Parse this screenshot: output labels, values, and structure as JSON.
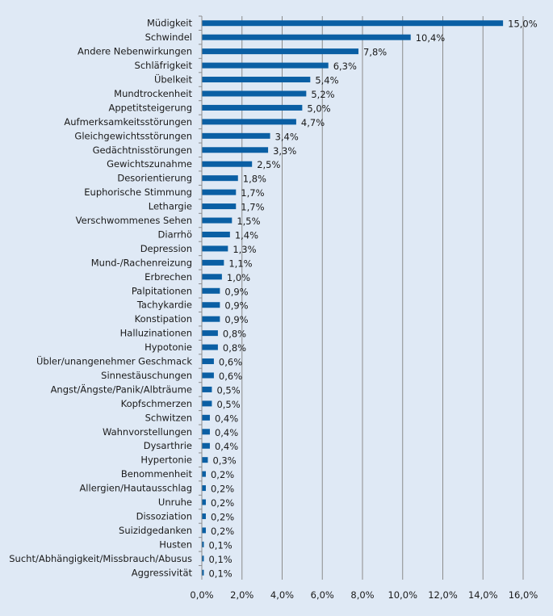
{
  "chart_data": {
    "type": "bar",
    "orientation": "horizontal",
    "title": "",
    "xlabel": "",
    "ylabel": "",
    "xlim": [
      0,
      16
    ],
    "grid": true,
    "bar_color": "#0a5fa4",
    "grid_color": "#8c8c8c",
    "background_color": "#dfe9f5",
    "x_ticks": [
      "0,0%",
      "2,0%",
      "4,0%",
      "6,0%",
      "8,0%",
      "10,0%",
      "12,0%",
      "14,0%",
      "16,0%"
    ],
    "categories": [
      "Müdigkeit",
      "Schwindel",
      "Andere Nebenwirkungen",
      "Schläfrigkeit",
      "Übelkeit",
      "Mundtrockenheit",
      "Appetitsteigerung",
      "Aufmerksamkeitsstörungen",
      "Gleichgewichtsstörungen",
      "Gedächtnisstörungen",
      "Gewichtszunahme",
      "Desorientierung",
      "Euphorische Stimmung",
      "Lethargie",
      "Verschwommenes Sehen",
      "Diarrhö",
      "Depression",
      "Mund-/Rachenreizung",
      "Erbrechen",
      "Palpitationen",
      "Tachykardie",
      "Konstipation",
      "Halluzinationen",
      "Hypotonie",
      "Übler/unangenehmer Geschmack",
      "Sinnestäuschungen",
      "Angst/Ängste/Panik/Albträume",
      "Kopfschmerzen",
      "Schwitzen",
      "Wahnvorstellungen",
      "Dysarthrie",
      "Hypertonie",
      "Benommenheit",
      "Allergien/Hautausschlag",
      "Unruhe",
      "Dissoziation",
      "Suizidgedanken",
      "Husten",
      "Sucht/Abhängigkeit/Missbrauch/Abusus",
      "Aggressivität"
    ],
    "values": [
      15.0,
      10.4,
      7.8,
      6.3,
      5.4,
      5.2,
      5.0,
      4.7,
      3.4,
      3.3,
      2.5,
      1.8,
      1.7,
      1.7,
      1.5,
      1.4,
      1.3,
      1.1,
      1.0,
      0.9,
      0.9,
      0.9,
      0.8,
      0.8,
      0.6,
      0.6,
      0.5,
      0.5,
      0.4,
      0.4,
      0.4,
      0.3,
      0.2,
      0.2,
      0.2,
      0.2,
      0.2,
      0.1,
      0.1,
      0.1
    ],
    "value_labels": [
      "15,0%",
      "10,4%",
      "7,8%",
      "6,3%",
      "5,4%",
      "5,2%",
      "5,0%",
      "4,7%",
      "3,4%",
      "3,3%",
      "2,5%",
      "1,8%",
      "1,7%",
      "1,7%",
      "1,5%",
      "1,4%",
      "1,3%",
      "1,1%",
      "1,0%",
      "0,9%",
      "0,9%",
      "0,9%",
      "0,8%",
      "0,8%",
      "0,6%",
      "0,6%",
      "0,5%",
      "0,5%",
      "0,4%",
      "0,4%",
      "0,4%",
      "0,3%",
      "0,2%",
      "0,2%",
      "0,2%",
      "0,2%",
      "0,2%",
      "0,1%",
      "0,1%",
      "0,1%"
    ]
  }
}
